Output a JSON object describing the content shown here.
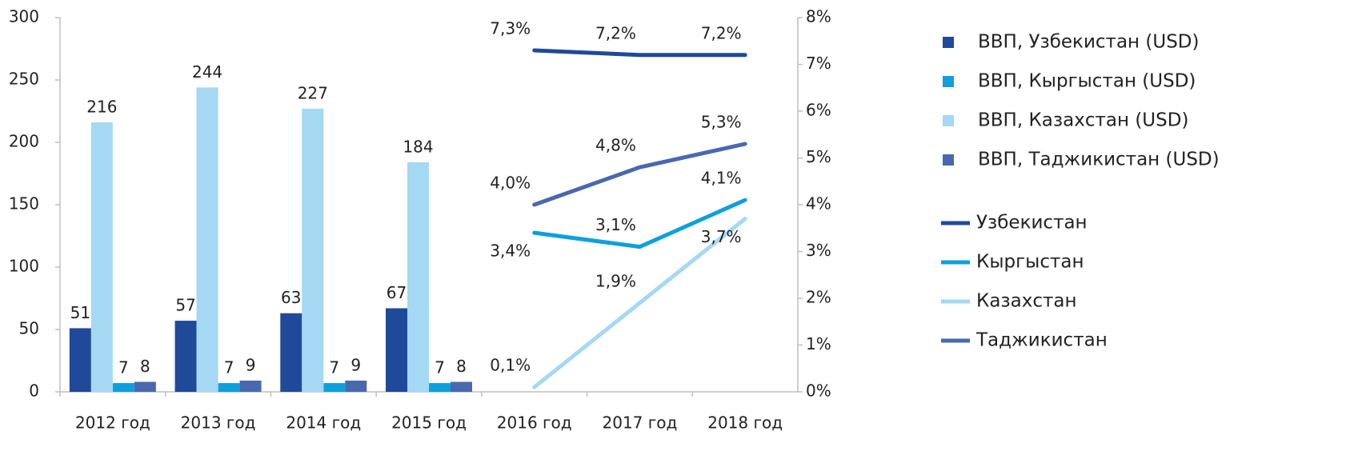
{
  "chart_data": {
    "type": "bar",
    "categories": [
      "2012 год",
      "2013 год",
      "2014 год",
      "2015 год",
      "2016 год",
      "2017 год",
      "2018 год"
    ],
    "ylim": [
      0,
      300
    ],
    "yticks": [
      0,
      50,
      100,
      150,
      200,
      250,
      300
    ],
    "y2lim": [
      0,
      8
    ],
    "y2ticks": [
      {
        "value": 0,
        "label": "0%"
      },
      {
        "value": 1,
        "label": "1%"
      },
      {
        "value": 2,
        "label": "2%"
      },
      {
        "value": 3,
        "label": "3%"
      },
      {
        "value": 4,
        "label": "4%"
      },
      {
        "value": 5,
        "label": "5%"
      },
      {
        "value": 6,
        "label": "6%"
      },
      {
        "value": 7,
        "label": "7%"
      },
      {
        "value": 8,
        "label": "8%"
      }
    ],
    "series": [
      {
        "name": "ВВП, Узбекистан (USD)",
        "type": "bar",
        "color": "#1f4a9a",
        "values": [
          51,
          57,
          63,
          67,
          null,
          null,
          null
        ]
      },
      {
        "name": "ВВП, Кыргыстан (USD)",
        "type": "bar",
        "color": "#0ea0dc",
        "values": [
          7,
          7,
          7,
          7,
          null,
          null,
          null
        ]
      },
      {
        "name": "ВВП, Казахстан (USD)",
        "type": "bar",
        "color": "#a5d8f3",
        "values": [
          216,
          244,
          227,
          184,
          null,
          null,
          null
        ]
      },
      {
        "name": "ВВП, Таджикистан (USD)",
        "type": "bar",
        "color": "#4a68ae",
        "values": [
          8,
          9,
          9,
          8,
          null,
          null,
          null
        ]
      },
      {
        "name": "Узбекистан",
        "type": "line",
        "axis": "y2",
        "color": "#1f4a9a",
        "values": [
          null,
          null,
          null,
          null,
          7.3,
          7.2,
          7.2
        ],
        "value_labels": [
          null,
          null,
          null,
          null,
          "7,3%",
          "7,2%",
          "7,2%"
        ]
      },
      {
        "name": "Кыргыстан",
        "type": "line",
        "axis": "y2",
        "color": "#0ea0dc",
        "values": [
          null,
          null,
          null,
          null,
          3.4,
          3.1,
          4.1
        ],
        "value_labels": [
          null,
          null,
          null,
          null,
          "3,4%",
          "3,1%",
          "4,1%"
        ]
      },
      {
        "name": "Казахстан",
        "type": "line",
        "axis": "y2",
        "color": "#a5d8f3",
        "values": [
          null,
          null,
          null,
          null,
          0.1,
          1.9,
          3.7
        ],
        "value_labels": [
          null,
          null,
          null,
          null,
          "0,1%",
          "1,9%",
          "3,7%"
        ]
      },
      {
        "name": "Таджикистан",
        "type": "line",
        "axis": "y2",
        "color": "#4a68ae",
        "values": [
          null,
          null,
          null,
          null,
          4.0,
          4.8,
          5.3
        ],
        "value_labels": [
          null,
          null,
          null,
          null,
          "4,0%",
          "4,8%",
          "5,3%"
        ]
      }
    ]
  }
}
